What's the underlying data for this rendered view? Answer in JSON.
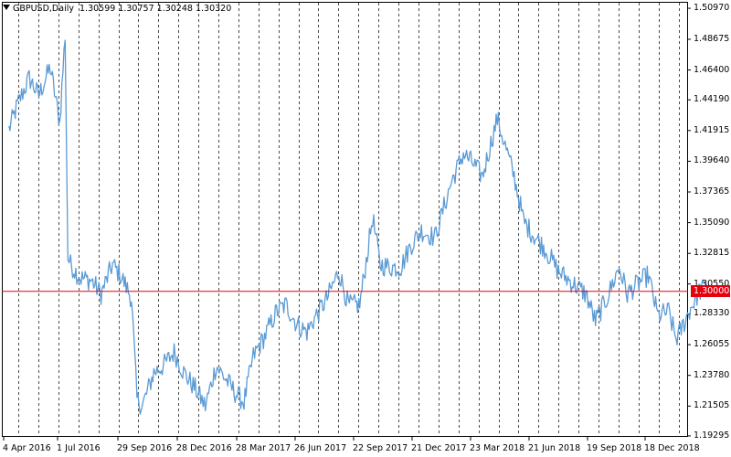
{
  "header": {
    "symbol": "GBPUSD,Daily",
    "open": "1.30599",
    "high": "1.30757",
    "low": "1.30248",
    "close": "1.30320"
  },
  "price_line": {
    "label": "1.30000",
    "color": "#e6000e"
  },
  "colors": {
    "series": "#5b9bd5",
    "background": "#ffffff",
    "axis": "#000000"
  },
  "chart_data": {
    "type": "line",
    "xlabel": "",
    "ylabel": "",
    "grid": "vertical-dashed",
    "ylim": [
      1.1929,
      1.5138
    ],
    "y_ticks": [
      "1.50970",
      "1.48675",
      "1.46400",
      "1.44190",
      "1.41915",
      "1.39640",
      "1.37365",
      "1.35090",
      "1.32815",
      "1.30550",
      "1.28330",
      "1.26055",
      "1.23780",
      "1.21505",
      "1.19295"
    ],
    "x_ticks": [
      "4 Apr 2016",
      "1 Jul 2016",
      "29 Sep 2016",
      "28 Dec 2016",
      "28 Mar 2017",
      "26 Jun 2017",
      "22 Sep 2017",
      "21 Dec 2017",
      "23 Mar 2018",
      "21 Jun 2018",
      "19 Sep 2018",
      "18 Dec 2018"
    ],
    "series": [
      {
        "x": [
          "2016-04-01",
          "2016-04-15",
          "2016-05-01",
          "2016-05-15",
          "2016-06-01",
          "2016-06-15",
          "2016-06-23",
          "2016-06-27",
          "2016-07-01",
          "2016-07-15",
          "2016-08-01",
          "2016-08-15",
          "2016-09-01",
          "2016-09-15",
          "2016-09-29",
          "2016-10-07",
          "2016-10-15",
          "2016-11-01",
          "2016-11-15",
          "2016-12-01",
          "2016-12-15",
          "2017-01-01",
          "2017-01-16",
          "2017-02-01",
          "2017-02-15",
          "2017-03-01",
          "2017-03-14",
          "2017-03-28",
          "2017-04-15",
          "2017-05-01",
          "2017-05-15",
          "2017-06-01",
          "2017-06-15",
          "2017-06-26",
          "2017-07-15",
          "2017-08-01",
          "2017-08-15",
          "2017-09-01",
          "2017-09-20",
          "2017-10-01",
          "2017-10-15",
          "2017-11-01",
          "2017-11-15",
          "2017-12-01",
          "2017-12-21",
          "2018-01-15",
          "2018-02-01",
          "2018-02-15",
          "2018-03-01",
          "2018-03-23",
          "2018-04-17",
          "2018-05-01",
          "2018-05-15",
          "2018-06-01",
          "2018-06-21",
          "2018-07-15",
          "2018-08-01",
          "2018-08-15",
          "2018-09-01",
          "2018-09-19",
          "2018-10-01",
          "2018-10-15",
          "2018-11-01",
          "2018-11-15",
          "2018-12-01",
          "2018-12-12",
          "2018-12-18",
          "2019-01-01",
          "2019-01-15",
          "2019-01-25"
        ],
        "values": [
          1.42,
          1.44,
          1.458,
          1.445,
          1.466,
          1.425,
          1.49,
          1.325,
          1.32,
          1.31,
          1.308,
          1.298,
          1.32,
          1.31,
          1.295,
          1.22,
          1.215,
          1.24,
          1.245,
          1.255,
          1.24,
          1.228,
          1.215,
          1.245,
          1.235,
          1.225,
          1.218,
          1.252,
          1.268,
          1.285,
          1.29,
          1.275,
          1.27,
          1.28,
          1.295,
          1.315,
          1.29,
          1.29,
          1.355,
          1.32,
          1.318,
          1.318,
          1.334,
          1.345,
          1.34,
          1.382,
          1.402,
          1.395,
          1.385,
          1.428,
          1.385,
          1.352,
          1.342,
          1.332,
          1.315,
          1.305,
          1.298,
          1.278,
          1.295,
          1.318,
          1.298,
          1.305,
          1.312,
          1.282,
          1.285,
          1.265,
          1.27,
          1.286,
          1.3,
          1.303
        ]
      }
    ]
  }
}
